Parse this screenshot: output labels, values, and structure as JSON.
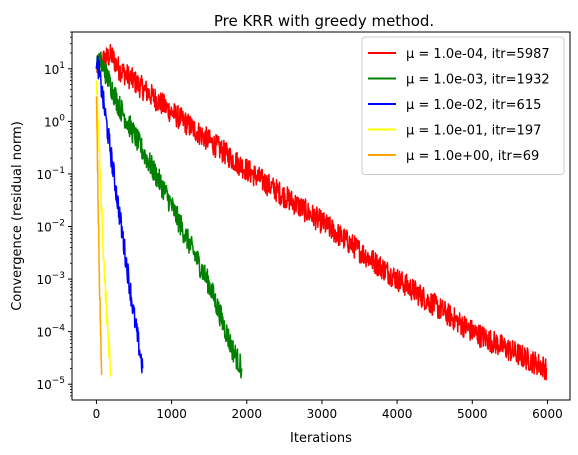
{
  "chart_data": {
    "type": "line",
    "title": "Pre KRR with greedy method.",
    "xlabel": "Iterations",
    "ylabel": "Convergence (residual norm)",
    "xlim": [
      -325,
      6300
    ],
    "ylim_log10": [
      -5.3,
      1.7
    ],
    "yscale": "log",
    "grid": false,
    "legend_position": "top-right",
    "x_ticks": [
      {
        "value": 0,
        "label": "0"
      },
      {
        "value": 1000,
        "label": "1000"
      },
      {
        "value": 2000,
        "label": "2000"
      },
      {
        "value": 3000,
        "label": "3000"
      },
      {
        "value": 4000,
        "label": "4000"
      },
      {
        "value": 5000,
        "label": "5000"
      },
      {
        "value": 6000,
        "label": "6000"
      }
    ],
    "y_ticks": [
      {
        "exp": 1,
        "label": "10",
        "sup": "1"
      },
      {
        "exp": 0,
        "label": "10",
        "sup": "0"
      },
      {
        "exp": -1,
        "label": "10",
        "sup": "−1"
      },
      {
        "exp": -2,
        "label": "10",
        "sup": "−2"
      },
      {
        "exp": -3,
        "label": "10",
        "sup": "−3"
      },
      {
        "exp": -4,
        "label": "10",
        "sup": "−4"
      },
      {
        "exp": -5,
        "label": "10",
        "sup": "−5"
      }
    ],
    "series": [
      {
        "name": "μ = 1.0e-04, itr=5987",
        "color": "#ff0000",
        "iterations": 5987,
        "x": [
          0,
          100,
          200,
          300,
          1000,
          2000,
          3000,
          4000,
          5000,
          5987
        ],
        "y": [
          10,
          15,
          18,
          10,
          1.5,
          0.12,
          0.012,
          0.001,
          0.0001,
          2e-05
        ]
      },
      {
        "name": "μ = 1.0e-03, itr=1932",
        "color": "#008000",
        "iterations": 1932,
        "x": [
          0,
          50,
          100,
          300,
          600,
          900,
          1200,
          1500,
          1800,
          1932
        ],
        "y": [
          10,
          14,
          10,
          2,
          0.3,
          0.05,
          0.006,
          0.0008,
          5e-05,
          2e-05
        ]
      },
      {
        "name": "μ = 1.0e-02, itr=615",
        "color": "#0000ff",
        "iterations": 615,
        "x": [
          0,
          20,
          100,
          200,
          300,
          400,
          500,
          615
        ],
        "y": [
          10,
          12,
          2,
          0.2,
          0.02,
          0.002,
          0.0002,
          2e-05
        ]
      },
      {
        "name": "μ = 1.0e-01, itr=197",
        "color": "#ffff00",
        "iterations": 197,
        "x": [
          0,
          5,
          50,
          100,
          150,
          197
        ],
        "y": [
          6,
          4,
          0.1,
          0.002,
          0.0001,
          1.5e-05
        ]
      },
      {
        "name": "μ = 1.0e+00, itr=69",
        "color": "#ffa500",
        "iterations": 69,
        "x": [
          0,
          5,
          20,
          40,
          60,
          69
        ],
        "y": [
          3,
          1,
          0.05,
          0.001,
          5e-05,
          1.5e-05
        ]
      }
    ]
  }
}
